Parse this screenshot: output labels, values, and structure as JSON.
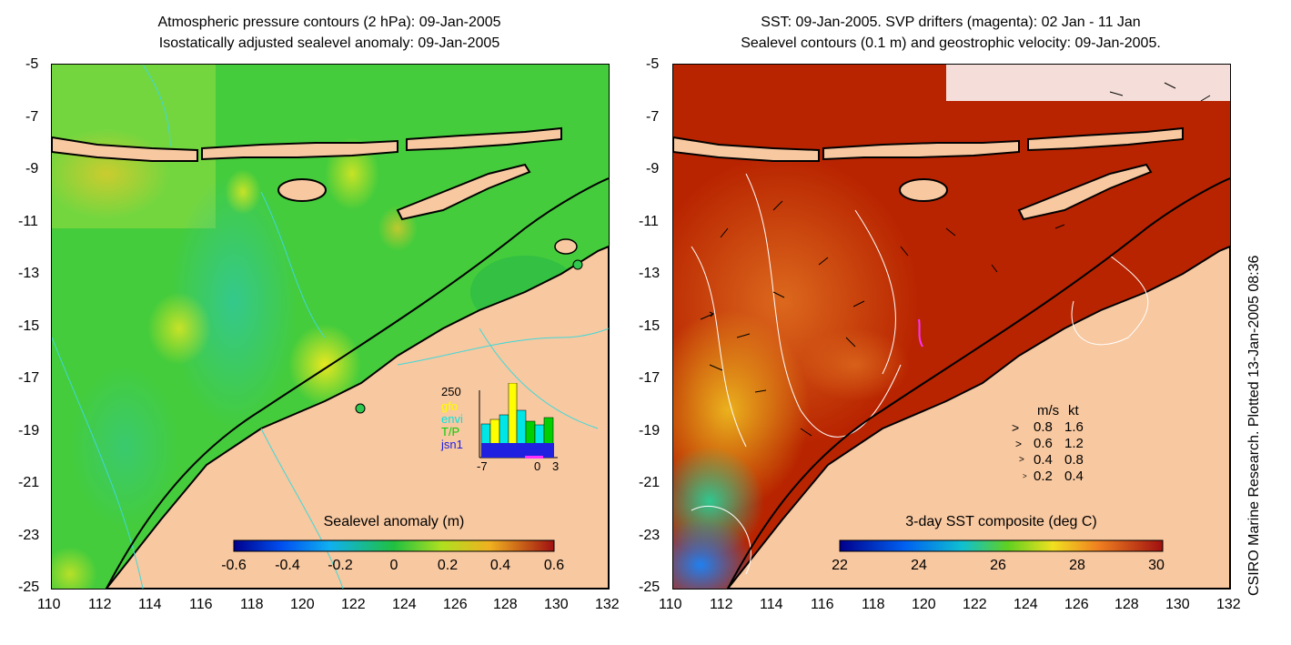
{
  "left_map": {
    "title_line1": "Atmospheric pressure contours (2 hPa): 09-Jan-2005",
    "title_line2": "Isostatically adjusted sealevel anomaly: 09-Jan-2005",
    "colorbar_label": "Sealevel anomaly (m)",
    "colorbar_ticks": [
      "-0.6",
      "-0.4",
      "-0.2",
      "0",
      "0.2",
      "0.4",
      "0.6"
    ],
    "inset": {
      "ymax_label": "250",
      "legend": [
        "gfo",
        "envi",
        "T/P",
        "jsn1"
      ],
      "legend_colors": [
        "#ffff00",
        "#00e5e5",
        "#00d000",
        "#2020e0"
      ],
      "xticks": [
        "-7",
        "0",
        "3"
      ]
    }
  },
  "right_map": {
    "title_line1": "SST: 09-Jan-2005. SVP drifters (magenta): 02 Jan - 11 Jan",
    "title_line2": "Sealevel contours (0.1 m) and geostrophic velocity: 09-Jan-2005.",
    "colorbar_label": "3-day SST composite (deg C)",
    "colorbar_ticks": [
      "22",
      "24",
      "26",
      "28",
      "30"
    ],
    "velocity_key": {
      "header_ms": "m/s",
      "header_kt": "kt",
      "rows": [
        {
          "ms": "0.8",
          "kt": "1.6"
        },
        {
          "ms": "0.6",
          "kt": "1.2"
        },
        {
          "ms": "0.4",
          "kt": "0.8"
        },
        {
          "ms": "0.2",
          "kt": "0.4"
        }
      ]
    }
  },
  "axes": {
    "lat_ticks": [
      "-5",
      "-7",
      "-9",
      "-11",
      "-13",
      "-15",
      "-17",
      "-19",
      "-21",
      "-23",
      "-25"
    ],
    "lon_ticks": [
      "110",
      "112",
      "114",
      "116",
      "118",
      "120",
      "122",
      "124",
      "126",
      "128",
      "130",
      "132"
    ]
  },
  "credit": "CSIRO Marine Research. Plotted 13-Jan-2005 08:36",
  "colors": {
    "land": "#f8c8a0",
    "sea_green": "#3cc83c",
    "sst_red": "#b81800",
    "coast": "#000000",
    "contour": "#40d8d8",
    "drifter": "#ff30ff"
  }
}
